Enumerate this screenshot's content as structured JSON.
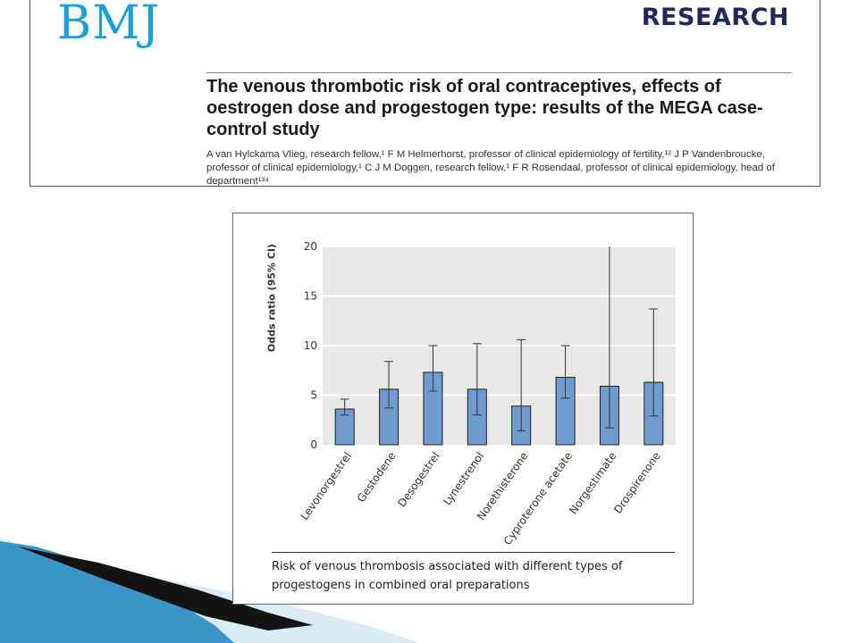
{
  "paper": {
    "logo": "BMJ",
    "section": "RESEARCH",
    "title": "The venous thrombotic risk of oral contraceptives, effects of oestrogen dose and progestogen type: results of the MEGA case-control study",
    "authors": "A van Hylckama Vlieg, research fellow,¹ F M Helmerhorst, professor of clinical epidemiology of fertility,¹² J P Vandenbroucke, professor of clinical epidemiology,¹ C J M Doggen, research fellow,¹ F R Rosendaal, professor of clinical epidemiology, head of department¹³⁴"
  },
  "colors": {
    "logo": "#1a9fd8",
    "section": "#1f2a5a",
    "plot_bg": "#e9e8e7",
    "bar": "#6f9ccf",
    "bar_edge": "#1d1d1d",
    "deco_dark": "#141414",
    "deco_blue": "#2f8fc4"
  },
  "chart_data": {
    "type": "bar",
    "title": "",
    "xlabel": "",
    "ylabel": "Odds ratio (95% CI)",
    "ylim": [
      0,
      20
    ],
    "yticks": [
      0,
      5,
      10,
      15,
      20
    ],
    "grid": true,
    "categories": [
      "Levonorgestrel",
      "Gestodene",
      "Desogestrel",
      "Lynestrenol",
      "Norethisterone",
      "Cyproterone acetate",
      "Norgestimate",
      "Drospirenone"
    ],
    "values": [
      3.6,
      5.6,
      7.3,
      5.6,
      3.9,
      6.8,
      5.9,
      6.3
    ],
    "ci_lower": [
      3.0,
      3.7,
      5.4,
      3.0,
      1.4,
      4.7,
      1.7,
      2.9
    ],
    "ci_upper": [
      4.6,
      8.4,
      10.0,
      10.2,
      10.6,
      10.0,
      20.0,
      13.7
    ]
  },
  "caption": "Risk of venous thrombosis associated with different types of progestogens in combined oral preparations"
}
